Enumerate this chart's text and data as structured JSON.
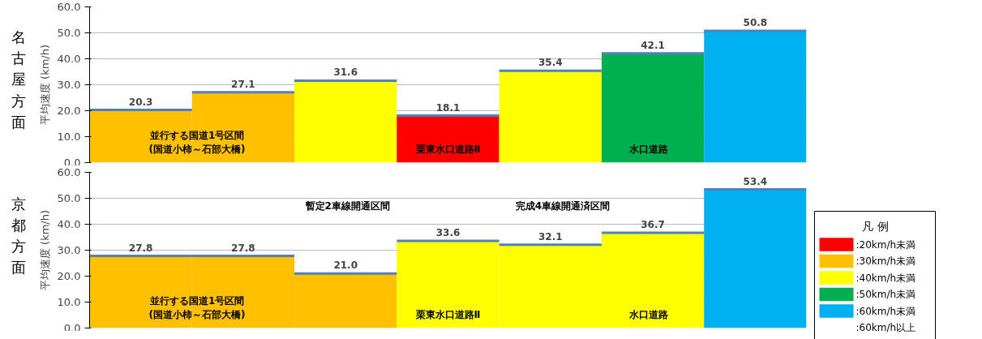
{
  "chart_data": [
    {
      "type": "bar",
      "title": "名古屋方面",
      "ylabel": "平均速度 (km/h)",
      "categories": [
        null,
        null,
        null,
        null,
        null,
        null,
        null
      ],
      "values": [
        20.3,
        27.1,
        31.6,
        18.1,
        35.4,
        42.1,
        50.8
      ],
      "colors": [
        "#ffc000",
        "#ffc000",
        "#ffff00",
        "#ff0000",
        "#ffff00",
        "#00b050",
        "#00b0f0"
      ],
      "ylim": [
        0,
        60
      ],
      "yticks": [
        {
          "value": 0,
          "label": "0.0"
        },
        {
          "value": 10,
          "label": "10.0"
        },
        {
          "value": 20,
          "label": "20.0"
        },
        {
          "value": 30,
          "label": "30.0"
        },
        {
          "value": 40,
          "label": "40.0"
        },
        {
          "value": 50,
          "label": "50.0"
        },
        {
          "value": 60,
          "label": "60.0"
        }
      ],
      "grid": "y",
      "value_labels": [
        "20.3",
        "27.1",
        "31.6",
        "18.1",
        "35.4",
        "42.1",
        "50.8"
      ],
      "annotations": [
        "並行する国道1号区間\n(国道小柿～石部大橋)",
        "栗東水口道路Ⅱ",
        "水口道路"
      ]
    },
    {
      "type": "bar",
      "title": "京都方面",
      "ylabel": "平均速度 (km/h)",
      "categories": [
        null,
        null,
        null,
        null,
        null,
        null,
        null
      ],
      "values": [
        27.8,
        27.8,
        21.0,
        33.6,
        32.1,
        36.7,
        53.4
      ],
      "colors": [
        "#ffc000",
        "#ffc000",
        "#ffc000",
        "#ffff00",
        "#ffff00",
        "#ffff00",
        "#00b0f0"
      ],
      "ylim": [
        0,
        60
      ],
      "yticks": [
        {
          "value": 0,
          "label": "0.0"
        },
        {
          "value": 10,
          "label": "10.0"
        },
        {
          "value": 20,
          "label": "20.0"
        },
        {
          "value": 30,
          "label": "30.0"
        },
        {
          "value": 40,
          "label": "40.0"
        },
        {
          "value": 50,
          "label": "50.0"
        },
        {
          "value": 60,
          "label": "60.0"
        }
      ],
      "grid": "y",
      "value_labels": [
        "27.8",
        "27.8",
        "21.0",
        "33.6",
        "32.1",
        "36.7",
        "53.4"
      ],
      "annotations": [
        "並行する国道1号区間\n(国道小柿～石部大橋)",
        "栗東水口道路Ⅱ",
        "水口道路",
        "暫定2車線開通区間",
        "完成4車線開通済区間"
      ]
    },
    {
      "type": "other",
      "title": "凡 例",
      "categories": [
        ":20km/h未満",
        ":30km/h未満",
        ":40km/h未満",
        ":50km/h未満",
        ":60km/h未満",
        ":60km/h以上"
      ],
      "colors": [
        "#ff0000",
        "#ffc000",
        "#ffff00",
        "#00b050",
        "#00b0f0",
        null
      ]
    }
  ]
}
